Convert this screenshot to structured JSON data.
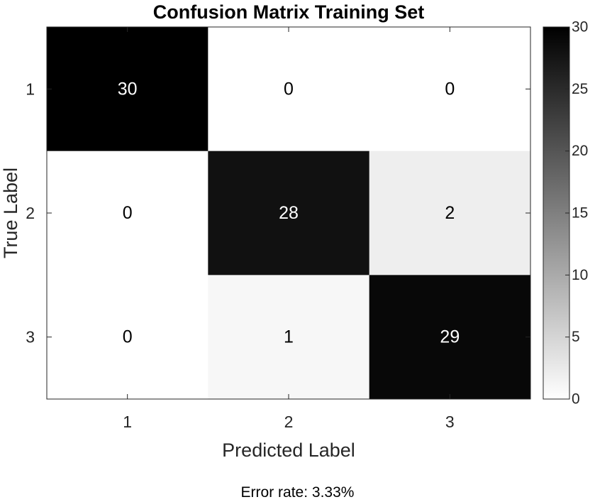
{
  "chart_data": {
    "type": "heatmap",
    "title": "Confusion Matrix Training Set",
    "xlabel": "Predicted Label",
    "ylabel": "True Label",
    "x_categories": [
      "1",
      "2",
      "3"
    ],
    "y_categories": [
      "1",
      "2",
      "3"
    ],
    "values": [
      [
        30,
        0,
        0
      ],
      [
        0,
        28,
        2
      ],
      [
        0,
        1,
        29
      ]
    ],
    "colormap": "gray-reversed",
    "colorbar": {
      "range": [
        0,
        30
      ],
      "ticks": [
        0,
        5,
        10,
        15,
        20,
        25,
        30
      ]
    },
    "grid": false
  },
  "footer": {
    "error_rate_text": "Error rate: 3.33%"
  }
}
